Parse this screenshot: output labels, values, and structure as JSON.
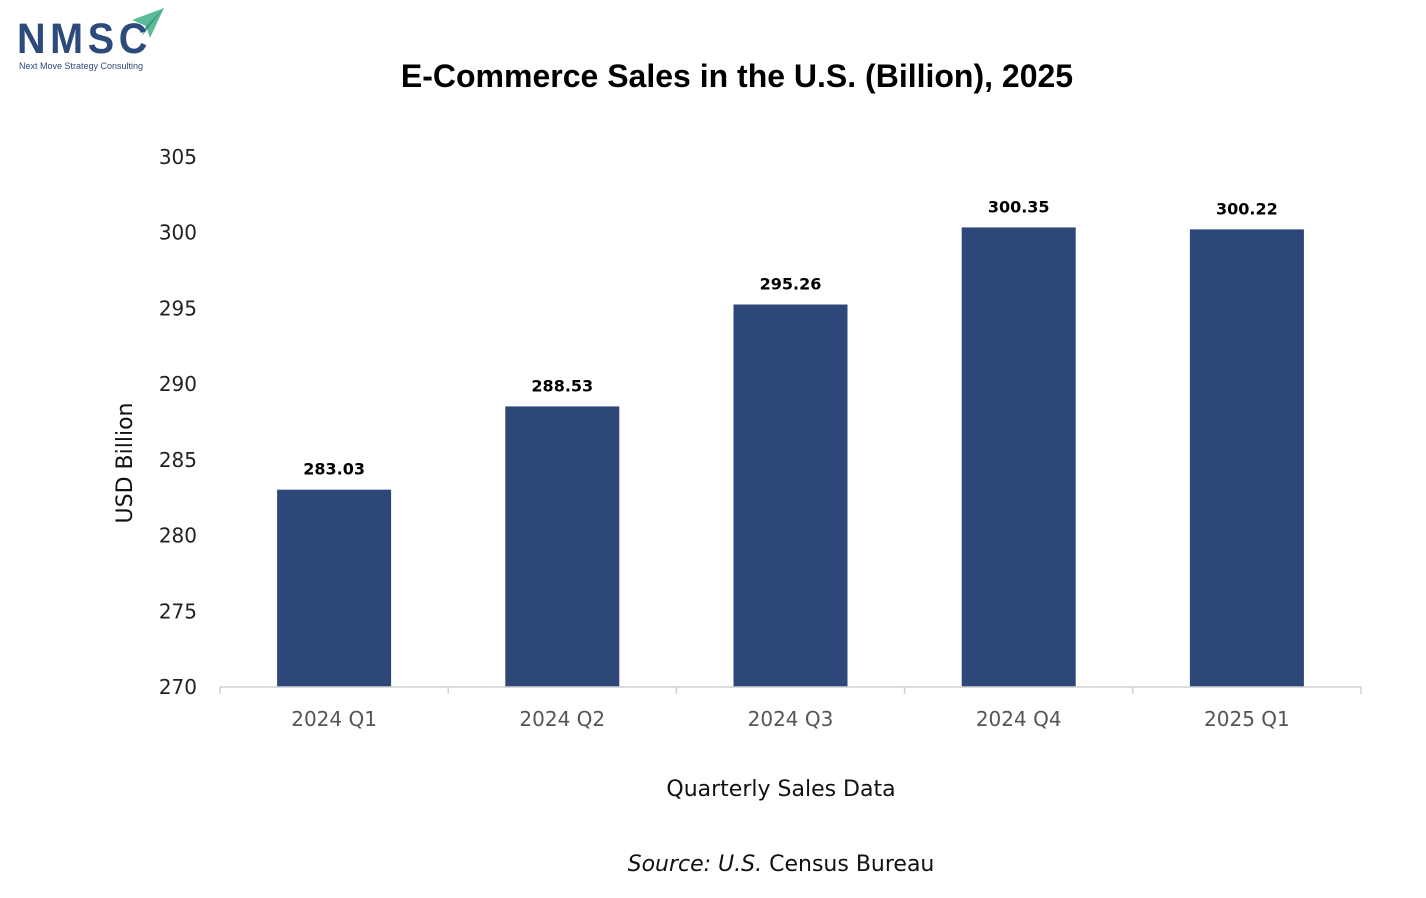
{
  "logo": {
    "text": "NMSC",
    "tagline": "Next Move Strategy Consulting",
    "icon": "paper-plane-icon",
    "brand_color": "#2d4a7c",
    "accent_color": "#5dbb9a"
  },
  "chart_data": {
    "type": "bar",
    "title": "E-Commerce Sales in the U.S. (Billion), 2025",
    "xlabel": "Quarterly Sales Data",
    "ylabel": "USD Billion",
    "categories": [
      "2024 Q1",
      "2024 Q2",
      "2024 Q3",
      "2024 Q4",
      "2025 Q1"
    ],
    "values": [
      283.03,
      288.53,
      295.26,
      300.35,
      300.22
    ],
    "data_labels": [
      "283.03",
      "288.53",
      "295.26",
      "300.35",
      "300.22"
    ],
    "ylim": [
      270,
      305
    ],
    "yticks": [
      "270",
      "275",
      "280",
      "285",
      "290",
      "295",
      "300",
      "305"
    ],
    "grid": false,
    "legend": "none",
    "bar_color": "#2d4779"
  },
  "source": {
    "prefix": "Source: U.S.",
    "suffix": " Census Bureau"
  }
}
